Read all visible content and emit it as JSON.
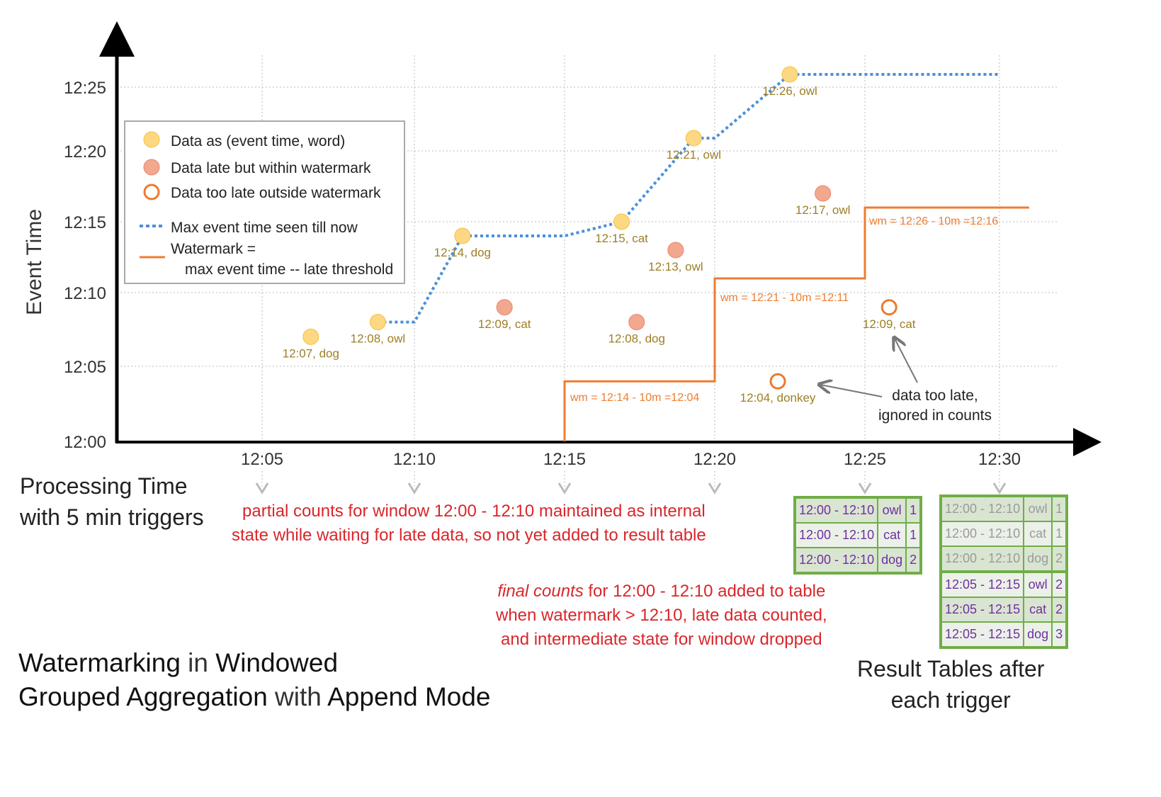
{
  "title": {
    "p1": "Watermarking",
    "p2": " in ",
    "p3": "Windowed",
    "p4": "Grouped Aggregation",
    "p5": " with ",
    "p6": "Append Mode"
  },
  "axes": {
    "ylabel": "Event Time",
    "xlabel_line1": "Processing Time",
    "xlabel_line2": "with 5 min triggers",
    "yticks": [
      "12:00",
      "12:05",
      "12:10",
      "12:15",
      "12:20",
      "12:25"
    ],
    "xticks": [
      "12:05",
      "12:10",
      "12:15",
      "12:20",
      "12:25",
      "12:30"
    ]
  },
  "legend": {
    "data": "Data as (event time, word)",
    "late": "Data late but within watermark",
    "too_late": "Data too late outside watermark",
    "max": "Max event time seen till now",
    "wm1": "Watermark =",
    "wm2": "max event time -- late threshold"
  },
  "colors": {
    "on_time_fill": "#fdd882",
    "late_fill": "#f2a88e",
    "too_late": "#ec7a30",
    "max_line": "#4a90d9",
    "watermark": "#ed7d31",
    "point_label": "#9c7f25",
    "note": "#d9262b",
    "table_border": "#70ad47",
    "table_text": "#7030a0"
  },
  "points": [
    {
      "label": "12:07, dog",
      "event": 7,
      "proc": 6.6,
      "type": "on_time"
    },
    {
      "label": "12:08, owl",
      "event": 8,
      "proc": 8.8,
      "type": "on_time"
    },
    {
      "label": "12:14, dog",
      "event": 14,
      "proc": 11.6,
      "type": "on_time"
    },
    {
      "label": "12:09, cat",
      "event": 9,
      "proc": 13.0,
      "type": "late"
    },
    {
      "label": "12:15, cat",
      "event": 15,
      "proc": 16.9,
      "type": "on_time"
    },
    {
      "label": "12:08, dog",
      "event": 8,
      "proc": 17.4,
      "type": "late"
    },
    {
      "label": "12:13, owl",
      "event": 13,
      "proc": 18.7,
      "type": "late"
    },
    {
      "label": "12:21, owl",
      "event": 21,
      "proc": 19.3,
      "type": "on_time"
    },
    {
      "label": "12:04, donkey",
      "event": 4,
      "proc": 22.1,
      "type": "too_late"
    },
    {
      "label": "12:26, owl",
      "event": 26,
      "proc": 22.5,
      "type": "on_time"
    },
    {
      "label": "12:17, owl",
      "event": 17,
      "proc": 23.6,
      "type": "late"
    },
    {
      "label": "12:09, cat",
      "event": 9,
      "proc": 25.9,
      "type": "too_late"
    }
  ],
  "max_line": [
    [
      8.8,
      8
    ],
    [
      10,
      8
    ],
    [
      11.6,
      14
    ],
    [
      15,
      14
    ],
    [
      16.9,
      15
    ],
    [
      19.3,
      21
    ],
    [
      20,
      21
    ],
    [
      22.5,
      26
    ],
    [
      30,
      26
    ]
  ],
  "watermark_line": [
    [
      15,
      0
    ],
    [
      15,
      4
    ],
    [
      20,
      4
    ],
    [
      20,
      11
    ],
    [
      25,
      11
    ],
    [
      25,
      16
    ],
    [
      31,
      16
    ]
  ],
  "wm_labels": [
    "wm = 12:14 - 10m =12:04",
    "wm = 12:21 - 10m =12:11",
    "wm = 12:26 - 10m =12:16"
  ],
  "notes": {
    "too_late1": "data too late,",
    "too_late2": "ignored in counts",
    "partial1": "partial counts for window 12:00 - 12:10 maintained as internal",
    "partial2": "state while waiting for late data, so not yet added  to result table",
    "final_em": "final counts",
    "final1": " for 12:00 - 12:10 added to table",
    "final2": "when watermark > 12:10, late data counted,",
    "final3": "and intermediate state for window dropped",
    "result1": "Result Tables after",
    "result2": "each trigger"
  },
  "table1": [
    [
      "12:00 - 12:10",
      "owl",
      "1"
    ],
    [
      "12:00 - 12:10",
      "cat",
      "1"
    ],
    [
      "12:00 - 12:10",
      "dog",
      "2"
    ]
  ],
  "table2": [
    [
      "12:00 - 12:10",
      "owl",
      "1"
    ],
    [
      "12:00 - 12:10",
      "cat",
      "1"
    ],
    [
      "12:00 - 12:10",
      "dog",
      "2"
    ],
    [
      "12:05 - 12:15",
      "owl",
      "2"
    ],
    [
      "12:05 - 12:15",
      "cat",
      "2"
    ],
    [
      "12:05 - 12:15",
      "dog",
      "3"
    ]
  ]
}
